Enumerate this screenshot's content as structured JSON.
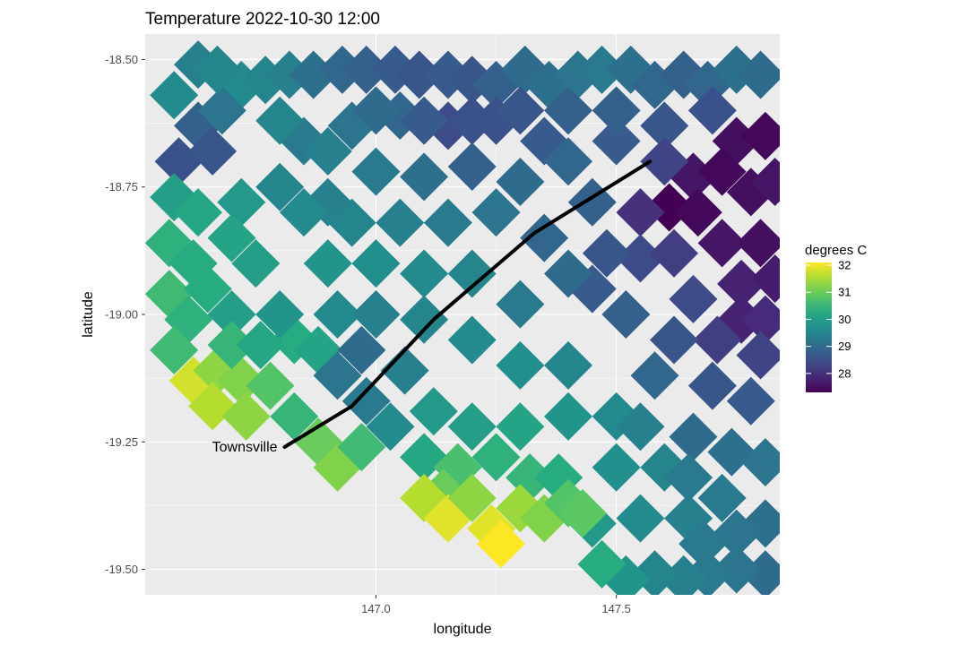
{
  "chart_data": {
    "type": "heatmap",
    "title": "Temperature 2022-10-30 12:00",
    "xlabel": "longitude",
    "ylabel": "latitude",
    "xlim": [
      146.52,
      147.84
    ],
    "ylim": [
      -19.55,
      -18.45
    ],
    "x_ticks": [
      {
        "value": 147.0,
        "label": "147.0"
      },
      {
        "value": 147.5,
        "label": "147.5"
      }
    ],
    "y_ticks": [
      {
        "value": -18.5,
        "label": "-18.50"
      },
      {
        "value": -18.75,
        "label": "-18.75"
      },
      {
        "value": -19.0,
        "label": "-19.00"
      },
      {
        "value": -19.25,
        "label": "-19.25"
      },
      {
        "value": -19.5,
        "label": "-19.50"
      }
    ],
    "grid": true,
    "panel_background": "#ebebeb",
    "legend": {
      "title": "degrees C",
      "position": "right",
      "min": 27.3,
      "max": 32.1,
      "breaks": [
        {
          "value": 32,
          "label": "32"
        },
        {
          "value": 31,
          "label": "31"
        },
        {
          "value": 30,
          "label": "30"
        },
        {
          "value": 29,
          "label": "29"
        },
        {
          "value": 28,
          "label": "28"
        }
      ],
      "colormap": "viridis"
    },
    "path": {
      "points": [
        [
          146.81,
          -19.26
        ],
        [
          146.95,
          -19.18
        ],
        [
          147.12,
          -19.01
        ],
        [
          147.33,
          -18.84
        ],
        [
          147.57,
          -18.7
        ]
      ],
      "label": "Townsville",
      "color": "#000000"
    },
    "cells": [
      {
        "lon": 146.63,
        "lat": -18.51,
        "temp": 29.4
      },
      {
        "lon": 146.58,
        "lat": -18.57,
        "temp": 29.6
      },
      {
        "lon": 146.63,
        "lat": -18.63,
        "temp": 28.8
      },
      {
        "lon": 146.59,
        "lat": -18.7,
        "temp": 28.5
      },
      {
        "lon": 146.66,
        "lat": -18.68,
        "temp": 28.6
      },
      {
        "lon": 146.58,
        "lat": -18.77,
        "temp": 30.0
      },
      {
        "lon": 146.63,
        "lat": -18.8,
        "temp": 30.2
      },
      {
        "lon": 146.57,
        "lat": -18.86,
        "temp": 30.4
      },
      {
        "lon": 146.62,
        "lat": -18.9,
        "temp": 30.3
      },
      {
        "lon": 146.57,
        "lat": -18.96,
        "temp": 30.6
      },
      {
        "lon": 146.61,
        "lat": -19.01,
        "temp": 30.4
      },
      {
        "lon": 146.58,
        "lat": -19.07,
        "temp": 30.6
      },
      {
        "lon": 146.62,
        "lat": -19.13,
        "temp": 31.8
      },
      {
        "lon": 146.67,
        "lat": -19.11,
        "temp": 31.3
      },
      {
        "lon": 146.66,
        "lat": -19.18,
        "temp": 31.6
      },
      {
        "lon": 146.72,
        "lat": -19.13,
        "temp": 31.2
      },
      {
        "lon": 146.73,
        "lat": -19.2,
        "temp": 31.3
      },
      {
        "lon": 146.78,
        "lat": -19.14,
        "temp": 30.8
      },
      {
        "lon": 146.83,
        "lat": -19.05,
        "temp": 30.3
      },
      {
        "lon": 146.88,
        "lat": -19.07,
        "temp": 30.1
      },
      {
        "lon": 146.72,
        "lat": -18.78,
        "temp": 29.9
      },
      {
        "lon": 146.72,
        "lat": -18.55,
        "temp": 29.6
      },
      {
        "lon": 146.77,
        "lat": -18.54,
        "temp": 29.5
      },
      {
        "lon": 146.82,
        "lat": -18.53,
        "temp": 29.4
      },
      {
        "lon": 146.87,
        "lat": -18.53,
        "temp": 29.1
      },
      {
        "lon": 146.93,
        "lat": -18.52,
        "temp": 28.9
      },
      {
        "lon": 146.98,
        "lat": -18.52,
        "temp": 28.8
      },
      {
        "lon": 147.04,
        "lat": -18.52,
        "temp": 28.7
      },
      {
        "lon": 147.09,
        "lat": -18.53,
        "temp": 28.6
      },
      {
        "lon": 147.15,
        "lat": -18.53,
        "temp": 28.7
      },
      {
        "lon": 147.2,
        "lat": -18.54,
        "temp": 28.6
      },
      {
        "lon": 147.25,
        "lat": -18.55,
        "temp": 28.8
      },
      {
        "lon": 147.31,
        "lat": -18.52,
        "temp": 29.0
      },
      {
        "lon": 147.36,
        "lat": -18.55,
        "temp": 29.1
      },
      {
        "lon": 147.42,
        "lat": -18.53,
        "temp": 29.2
      },
      {
        "lon": 147.47,
        "lat": -18.52,
        "temp": 29.3
      },
      {
        "lon": 147.53,
        "lat": -18.52,
        "temp": 29.1
      },
      {
        "lon": 147.58,
        "lat": -18.55,
        "temp": 28.9
      },
      {
        "lon": 147.64,
        "lat": -18.53,
        "temp": 28.8
      },
      {
        "lon": 147.69,
        "lat": -18.55,
        "temp": 28.9
      },
      {
        "lon": 147.75,
        "lat": -18.52,
        "temp": 29.1
      },
      {
        "lon": 147.8,
        "lat": -18.53,
        "temp": 29.0
      },
      {
        "lon": 147.15,
        "lat": -18.63,
        "temp": 28.4
      },
      {
        "lon": 147.25,
        "lat": -18.62,
        "temp": 28.5
      },
      {
        "lon": 147.35,
        "lat": -18.66,
        "temp": 28.7
      },
      {
        "lon": 147.05,
        "lat": -18.61,
        "temp": 28.9
      },
      {
        "lon": 146.95,
        "lat": -18.63,
        "temp": 29.2
      },
      {
        "lon": 146.85,
        "lat": -18.66,
        "temp": 29.3
      },
      {
        "lon": 146.8,
        "lat": -18.75,
        "temp": 29.5
      },
      {
        "lon": 146.9,
        "lat": -18.78,
        "temp": 29.4
      },
      {
        "lon": 147.0,
        "lat": -18.72,
        "temp": 29.3
      },
      {
        "lon": 147.1,
        "lat": -18.73,
        "temp": 29.1
      },
      {
        "lon": 147.2,
        "lat": -18.71,
        "temp": 28.8
      },
      {
        "lon": 147.3,
        "lat": -18.74,
        "temp": 29.0
      },
      {
        "lon": 147.4,
        "lat": -18.7,
        "temp": 28.9
      },
      {
        "lon": 147.5,
        "lat": -18.66,
        "temp": 28.7
      },
      {
        "lon": 147.6,
        "lat": -18.63,
        "temp": 28.6
      },
      {
        "lon": 147.7,
        "lat": -18.6,
        "temp": 28.5
      },
      {
        "lon": 147.75,
        "lat": -18.66,
        "temp": 27.5
      },
      {
        "lon": 147.81,
        "lat": -18.65,
        "temp": 27.4
      },
      {
        "lon": 147.66,
        "lat": -18.73,
        "temp": 27.6
      },
      {
        "lon": 147.72,
        "lat": -18.72,
        "temp": 27.4
      },
      {
        "lon": 147.61,
        "lat": -18.79,
        "temp": 27.3
      },
      {
        "lon": 147.67,
        "lat": -18.8,
        "temp": 27.4
      },
      {
        "lon": 147.78,
        "lat": -18.76,
        "temp": 27.5
      },
      {
        "lon": 147.83,
        "lat": -18.74,
        "temp": 27.6
      },
      {
        "lon": 147.72,
        "lat": -18.86,
        "temp": 27.6
      },
      {
        "lon": 147.8,
        "lat": -18.86,
        "temp": 27.5
      },
      {
        "lon": 147.76,
        "lat": -18.94,
        "temp": 27.8
      },
      {
        "lon": 147.83,
        "lat": -18.93,
        "temp": 27.7
      },
      {
        "lon": 147.76,
        "lat": -19.01,
        "temp": 27.8
      },
      {
        "lon": 147.81,
        "lat": -19.01,
        "temp": 27.9
      },
      {
        "lon": 147.55,
        "lat": -18.8,
        "temp": 28.0
      },
      {
        "lon": 147.55,
        "lat": -18.89,
        "temp": 28.4
      },
      {
        "lon": 147.62,
        "lat": -18.88,
        "temp": 28.2
      },
      {
        "lon": 147.66,
        "lat": -18.97,
        "temp": 28.4
      },
      {
        "lon": 147.71,
        "lat": -19.05,
        "temp": 28.2
      },
      {
        "lon": 147.8,
        "lat": -19.08,
        "temp": 28.3
      },
      {
        "lon": 147.62,
        "lat": -19.05,
        "temp": 28.6
      },
      {
        "lon": 147.7,
        "lat": -19.14,
        "temp": 28.6
      },
      {
        "lon": 147.78,
        "lat": -19.17,
        "temp": 28.7
      },
      {
        "lon": 147.48,
        "lat": -18.88,
        "temp": 28.6
      },
      {
        "lon": 147.45,
        "lat": -18.95,
        "temp": 28.7
      },
      {
        "lon": 147.52,
        "lat": -19.0,
        "temp": 28.8
      },
      {
        "lon": 147.58,
        "lat": -19.12,
        "temp": 28.9
      },
      {
        "lon": 147.66,
        "lat": -19.24,
        "temp": 29.0
      },
      {
        "lon": 147.74,
        "lat": -19.27,
        "temp": 29.1
      },
      {
        "lon": 147.81,
        "lat": -19.29,
        "temp": 29.2
      },
      {
        "lon": 147.81,
        "lat": -19.41,
        "temp": 29.1
      },
      {
        "lon": 147.81,
        "lat": -19.51,
        "temp": 29.0
      },
      {
        "lon": 147.75,
        "lat": -19.5,
        "temp": 29.2
      },
      {
        "lon": 147.69,
        "lat": -19.51,
        "temp": 29.3
      },
      {
        "lon": 147.64,
        "lat": -19.52,
        "temp": 29.4
      },
      {
        "lon": 147.58,
        "lat": -19.51,
        "temp": 29.5
      },
      {
        "lon": 147.52,
        "lat": -19.52,
        "temp": 29.8
      },
      {
        "lon": 147.47,
        "lat": -19.49,
        "temp": 30.3
      },
      {
        "lon": 147.45,
        "lat": -19.41,
        "temp": 29.9
      },
      {
        "lon": 147.55,
        "lat": -19.4,
        "temp": 29.6
      },
      {
        "lon": 147.65,
        "lat": -19.4,
        "temp": 29.4
      },
      {
        "lon": 147.72,
        "lat": -19.36,
        "temp": 29.3
      },
      {
        "lon": 147.5,
        "lat": -19.3,
        "temp": 29.7
      },
      {
        "lon": 147.6,
        "lat": -19.3,
        "temp": 29.5
      },
      {
        "lon": 147.4,
        "lat": -19.2,
        "temp": 29.8
      },
      {
        "lon": 147.5,
        "lat": -19.2,
        "temp": 29.6
      },
      {
        "lon": 147.3,
        "lat": -19.1,
        "temp": 29.7
      },
      {
        "lon": 147.4,
        "lat": -19.1,
        "temp": 29.5
      },
      {
        "lon": 147.2,
        "lat": -19.05,
        "temp": 29.6
      },
      {
        "lon": 147.3,
        "lat": -18.98,
        "temp": 29.3
      },
      {
        "lon": 147.4,
        "lat": -18.92,
        "temp": 29.0
      },
      {
        "lon": 147.2,
        "lat": -18.92,
        "temp": 29.5
      },
      {
        "lon": 147.1,
        "lat": -18.92,
        "temp": 29.6
      },
      {
        "lon": 147.0,
        "lat": -18.9,
        "temp": 29.7
      },
      {
        "lon": 146.9,
        "lat": -18.9,
        "temp": 29.8
      },
      {
        "lon": 146.75,
        "lat": -18.9,
        "temp": 30.0
      },
      {
        "lon": 146.7,
        "lat": -19.0,
        "temp": 30.0
      },
      {
        "lon": 146.8,
        "lat": -19.0,
        "temp": 29.8
      },
      {
        "lon": 146.92,
        "lat": -19.0,
        "temp": 29.6
      },
      {
        "lon": 146.97,
        "lat": -19.07,
        "temp": 29.0
      },
      {
        "lon": 146.92,
        "lat": -19.12,
        "temp": 29.2
      },
      {
        "lon": 146.98,
        "lat": -19.17,
        "temp": 29.3
      },
      {
        "lon": 147.06,
        "lat": -19.11,
        "temp": 29.4
      },
      {
        "lon": 147.03,
        "lat": -19.22,
        "temp": 29.6
      },
      {
        "lon": 147.12,
        "lat": -19.19,
        "temp": 29.9
      },
      {
        "lon": 147.1,
        "lat": -19.28,
        "temp": 30.2
      },
      {
        "lon": 147.2,
        "lat": -19.22,
        "temp": 30.0
      },
      {
        "lon": 147.17,
        "lat": -19.3,
        "temp": 30.7
      },
      {
        "lon": 147.25,
        "lat": -19.28,
        "temp": 30.4
      },
      {
        "lon": 147.3,
        "lat": -19.22,
        "temp": 30.1
      },
      {
        "lon": 147.32,
        "lat": -19.32,
        "temp": 30.5
      },
      {
        "lon": 147.38,
        "lat": -19.32,
        "temp": 30.3
      },
      {
        "lon": 147.14,
        "lat": -19.35,
        "temp": 31.0
      },
      {
        "lon": 147.1,
        "lat": -19.36,
        "temp": 31.6
      },
      {
        "lon": 147.15,
        "lat": -19.4,
        "temp": 31.9
      },
      {
        "lon": 147.2,
        "lat": -19.36,
        "temp": 31.3
      },
      {
        "lon": 147.24,
        "lat": -19.42,
        "temp": 31.9
      },
      {
        "lon": 147.26,
        "lat": -19.45,
        "temp": 32.1
      },
      {
        "lon": 147.3,
        "lat": -19.38,
        "temp": 31.4
      },
      {
        "lon": 147.35,
        "lat": -19.4,
        "temp": 31.2
      },
      {
        "lon": 147.4,
        "lat": -19.37,
        "temp": 30.8
      },
      {
        "lon": 147.43,
        "lat": -19.39,
        "temp": 30.9
      },
      {
        "lon": 146.88,
        "lat": -19.25,
        "temp": 31.0
      },
      {
        "lon": 146.92,
        "lat": -19.3,
        "temp": 31.2
      },
      {
        "lon": 146.97,
        "lat": -19.26,
        "temp": 30.6
      },
      {
        "lon": 146.83,
        "lat": -19.2,
        "temp": 30.5
      },
      {
        "lon": 146.7,
        "lat": -18.85,
        "temp": 30.1
      },
      {
        "lon": 146.65,
        "lat": -18.95,
        "temp": 30.3
      },
      {
        "lon": 146.7,
        "lat": -19.06,
        "temp": 30.5
      },
      {
        "lon": 146.76,
        "lat": -19.06,
        "temp": 30.2
      },
      {
        "lon": 146.85,
        "lat": -18.8,
        "temp": 29.6
      },
      {
        "lon": 146.95,
        "lat": -18.82,
        "temp": 29.5
      },
      {
        "lon": 147.05,
        "lat": -18.82,
        "temp": 29.4
      },
      {
        "lon": 147.15,
        "lat": -18.82,
        "temp": 29.3
      },
      {
        "lon": 147.25,
        "lat": -18.8,
        "temp": 29.2
      },
      {
        "lon": 147.1,
        "lat": -19.01,
        "temp": 29.5
      },
      {
        "lon": 147.0,
        "lat": -19.0,
        "temp": 29.4
      },
      {
        "lon": 146.9,
        "lat": -18.68,
        "temp": 29.4
      },
      {
        "lon": 146.8,
        "lat": -18.62,
        "temp": 29.5
      },
      {
        "lon": 146.68,
        "lat": -18.6,
        "temp": 29.2
      },
      {
        "lon": 146.67,
        "lat": -18.52,
        "temp": 29.5
      },
      {
        "lon": 147.0,
        "lat": -18.6,
        "temp": 29.0
      },
      {
        "lon": 147.1,
        "lat": -18.62,
        "temp": 28.7
      },
      {
        "lon": 147.2,
        "lat": -18.62,
        "temp": 28.5
      },
      {
        "lon": 147.3,
        "lat": -18.6,
        "temp": 28.6
      },
      {
        "lon": 147.4,
        "lat": -18.6,
        "temp": 28.8
      },
      {
        "lon": 147.5,
        "lat": -18.6,
        "temp": 28.8
      },
      {
        "lon": 147.6,
        "lat": -18.7,
        "temp": 28.3
      },
      {
        "lon": 147.45,
        "lat": -18.78,
        "temp": 28.8
      },
      {
        "lon": 147.35,
        "lat": -18.85,
        "temp": 28.9
      },
      {
        "lon": 147.55,
        "lat": -19.22,
        "temp": 29.4
      },
      {
        "lon": 147.65,
        "lat": -19.32,
        "temp": 29.3
      },
      {
        "lon": 147.75,
        "lat": -19.43,
        "temp": 29.2
      },
      {
        "lon": 147.68,
        "lat": -19.45,
        "temp": 29.3
      }
    ]
  }
}
